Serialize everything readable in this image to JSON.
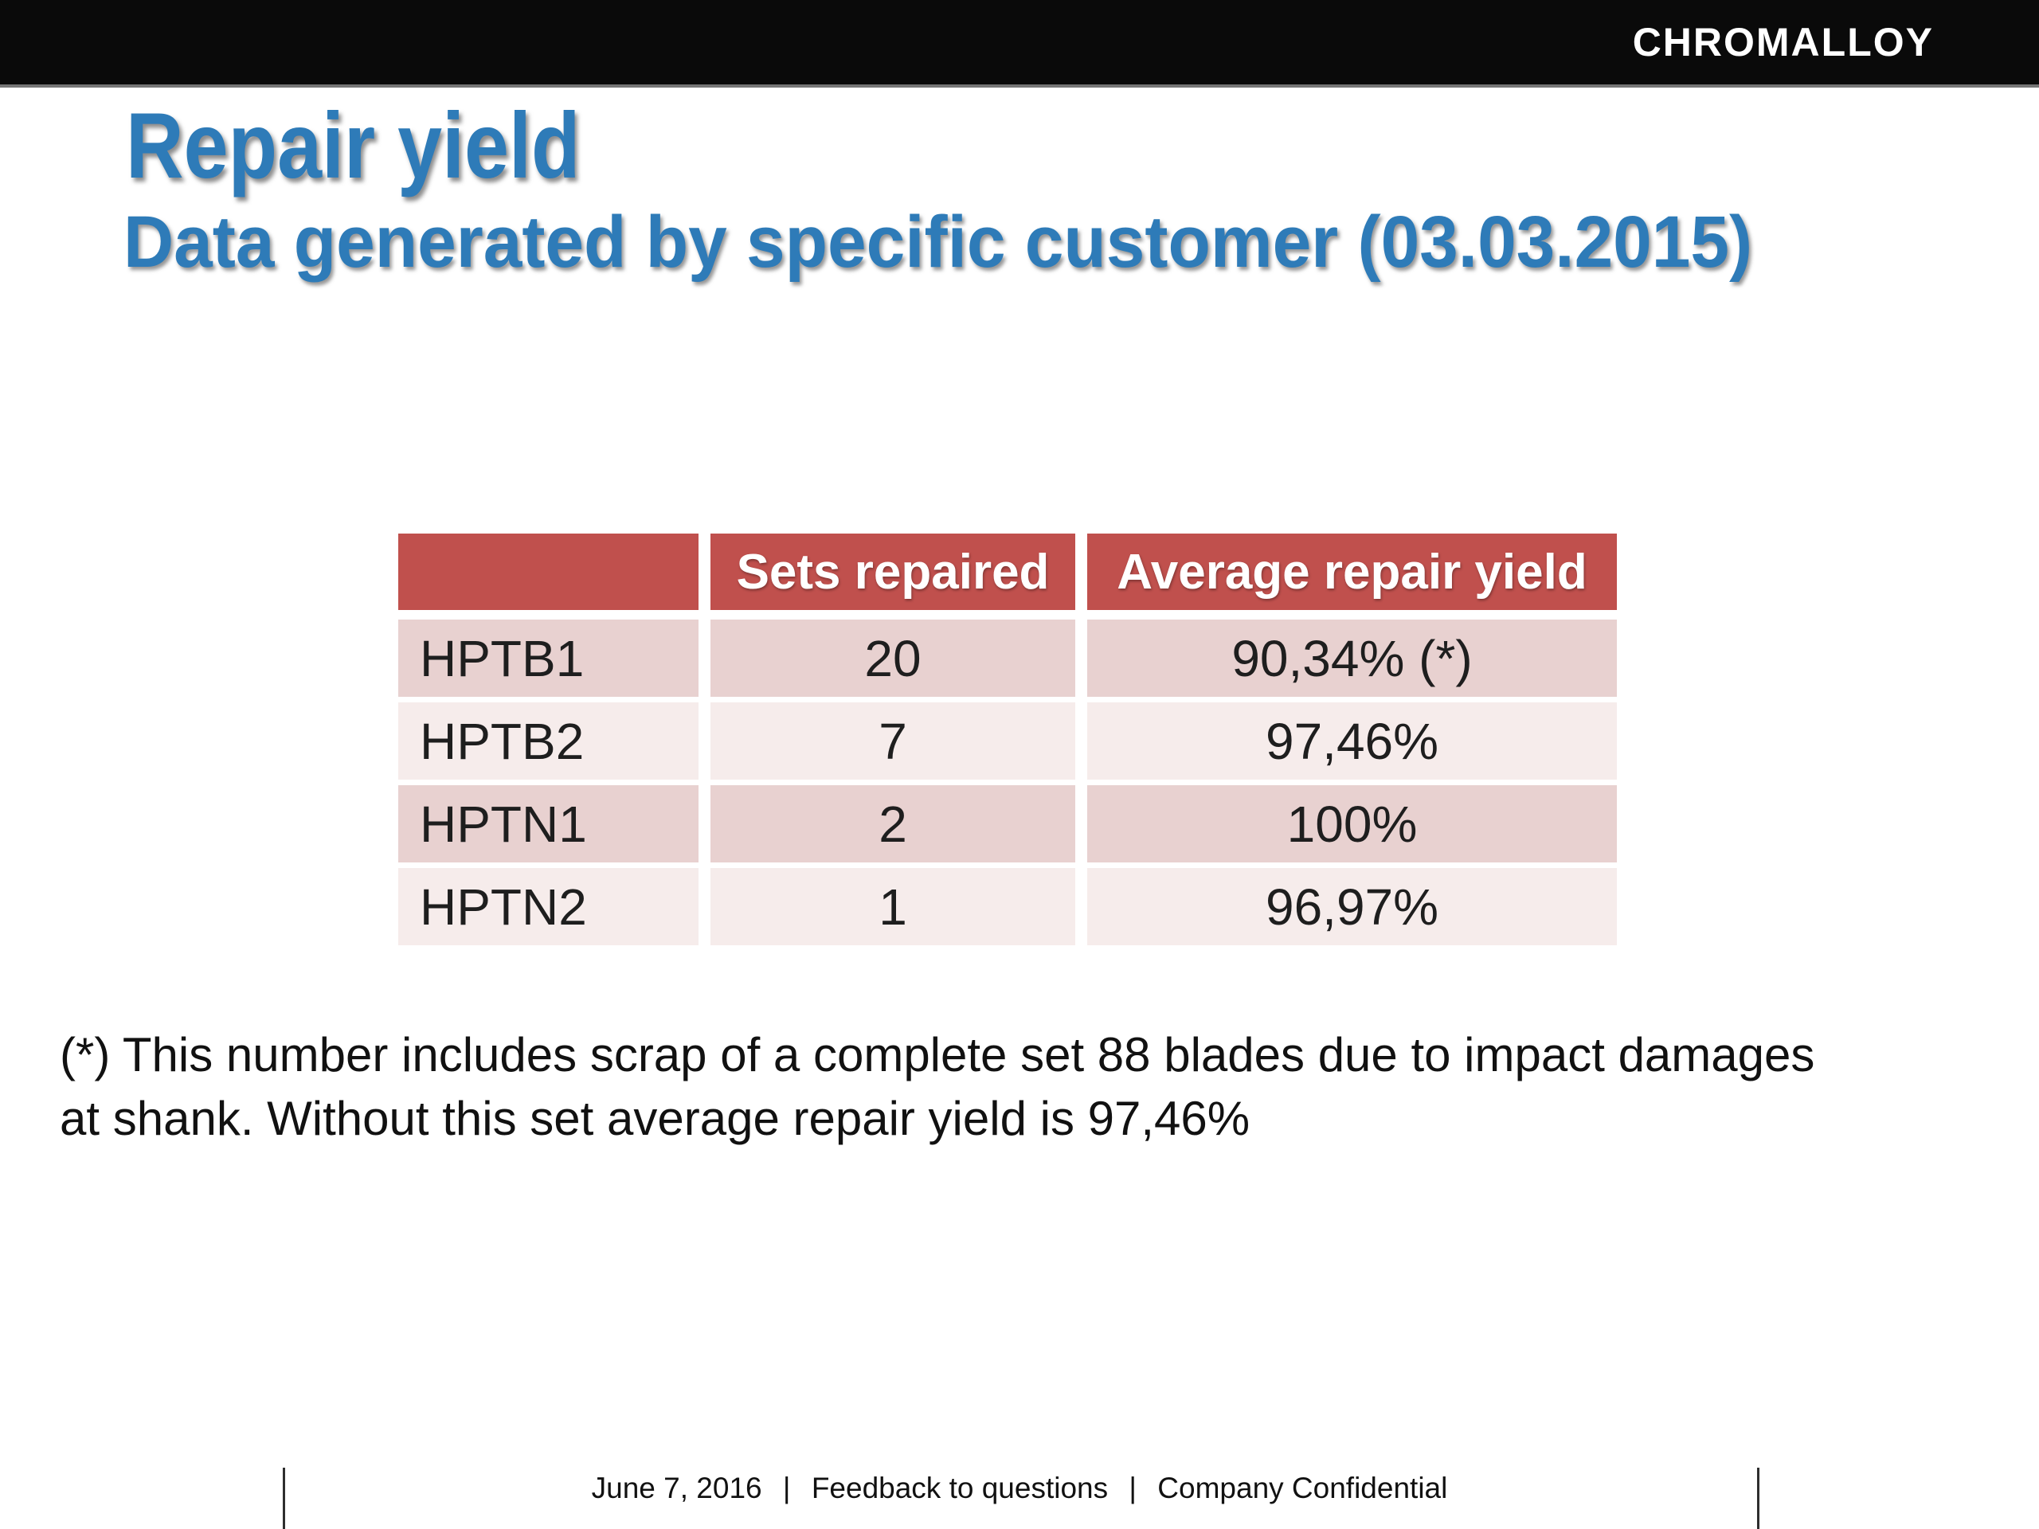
{
  "logo": {
    "text": "CHROMALLOY"
  },
  "header": {
    "title": "Repair yield",
    "subtitle": "Data generated by specific customer (03.03.2015)"
  },
  "table": {
    "columns": [
      "",
      "Sets repaired",
      "Average repair yield"
    ],
    "rows": [
      {
        "label": "HPTB1",
        "sets_repaired": "20",
        "avg_yield": "90,34% (*)"
      },
      {
        "label": "HPTB2",
        "sets_repaired": "7",
        "avg_yield": "97,46%"
      },
      {
        "label": "HPTN1",
        "sets_repaired": "2",
        "avg_yield": "100%"
      },
      {
        "label": "HPTN2",
        "sets_repaired": "1",
        "avg_yield": "96,97%"
      }
    ]
  },
  "footnote": {
    "lines": [
      "(*) This number includes scrap of a complete set 88 blades due to impact damages",
      "at shank. Without this set average repair yield is 97,46%"
    ]
  },
  "footer": {
    "date": "June 7,  2016",
    "separator": "|",
    "section": "Feedback to questions",
    "classification": "Company Confidential"
  },
  "colors": {
    "accent_blue": "#2E7BB8",
    "header_red": "#C0504D",
    "band_dark": "#E8D1D0",
    "band_light": "#F6ECEB",
    "bar_black": "#0A0A0A",
    "bar_underline_gray": "#757575"
  }
}
